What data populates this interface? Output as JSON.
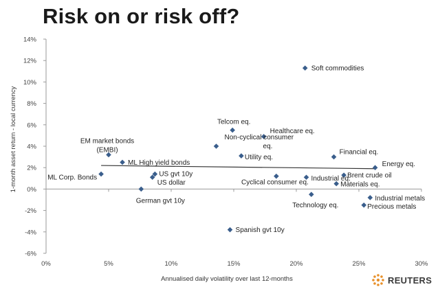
{
  "title": "Risk on or risk off?",
  "brand": "REUTERS",
  "colors": {
    "point": "#3a5e8c",
    "trend": "#333333",
    "axis": "#9a9a9a",
    "brand_orange": "#e8902a"
  },
  "chart_data": {
    "type": "scatter",
    "title": "Risk on or risk off?",
    "xlabel": "Annualised daily volatility over last 12-months",
    "ylabel": "1-month asset return - local currency",
    "xlim": [
      0,
      30
    ],
    "ylim": [
      -6,
      14
    ],
    "x_ticks": [
      0,
      5,
      10,
      15,
      20,
      25,
      30
    ],
    "x_tick_labels": [
      "0%",
      "5%",
      "10%",
      "15%",
      "20%",
      "25%",
      "30%"
    ],
    "y_ticks": [
      14,
      12,
      10,
      8,
      6,
      4,
      2,
      0,
      -2,
      -4,
      -6
    ],
    "y_tick_labels": [
      "14%",
      "12%",
      "10%",
      "8%",
      "6%",
      "4%",
      "2%",
      "0%",
      "-2%",
      "-4%",
      "-6%"
    ],
    "grid": false,
    "points": [
      {
        "name": "Soft commodities",
        "x": 20.7,
        "y": 11.3
      },
      {
        "name": "Telcom eq.",
        "x": 14.9,
        "y": 5.5
      },
      {
        "name": "Healthcare eq.",
        "x": 17.4,
        "y": 4.9
      },
      {
        "name": "Non-cyclical consumer eq.",
        "x": 13.6,
        "y": 4.0
      },
      {
        "name": "EM market bonds (EMBI)",
        "x": 5.0,
        "y": 3.2
      },
      {
        "name": "Utility eq.",
        "x": 15.6,
        "y": 3.1
      },
      {
        "name": "Financial eq.",
        "x": 23.0,
        "y": 3.0
      },
      {
        "name": "ML High yield bonds",
        "x": 6.1,
        "y": 2.5
      },
      {
        "name": "Energy eq.",
        "x": 26.3,
        "y": 2.0
      },
      {
        "name": "ML Corp. Bonds",
        "x": 4.4,
        "y": 1.4
      },
      {
        "name": "US gvt 10y",
        "x": 8.7,
        "y": 1.4
      },
      {
        "name": "US dollar",
        "x": 8.5,
        "y": 1.1
      },
      {
        "name": "Cyclical consumer eq.",
        "x": 18.4,
        "y": 1.2
      },
      {
        "name": "Industrial eq.",
        "x": 20.8,
        "y": 1.1
      },
      {
        "name": "Brent crude oil",
        "x": 23.8,
        "y": 1.3
      },
      {
        "name": "Materials eq.",
        "x": 23.2,
        "y": 0.5
      },
      {
        "name": "German gvt 10y",
        "x": 7.6,
        "y": 0.0
      },
      {
        "name": "Technology eq.",
        "x": 21.2,
        "y": -0.5
      },
      {
        "name": "Industrial metals",
        "x": 25.9,
        "y": -0.8
      },
      {
        "name": "Precious metals",
        "x": 25.4,
        "y": -1.5
      },
      {
        "name": "Spanish gvt 10y",
        "x": 14.7,
        "y": -3.8
      }
    ],
    "trendline": {
      "x": [
        4.4,
        26.3
      ],
      "y": [
        2.2,
        1.9
      ]
    }
  }
}
